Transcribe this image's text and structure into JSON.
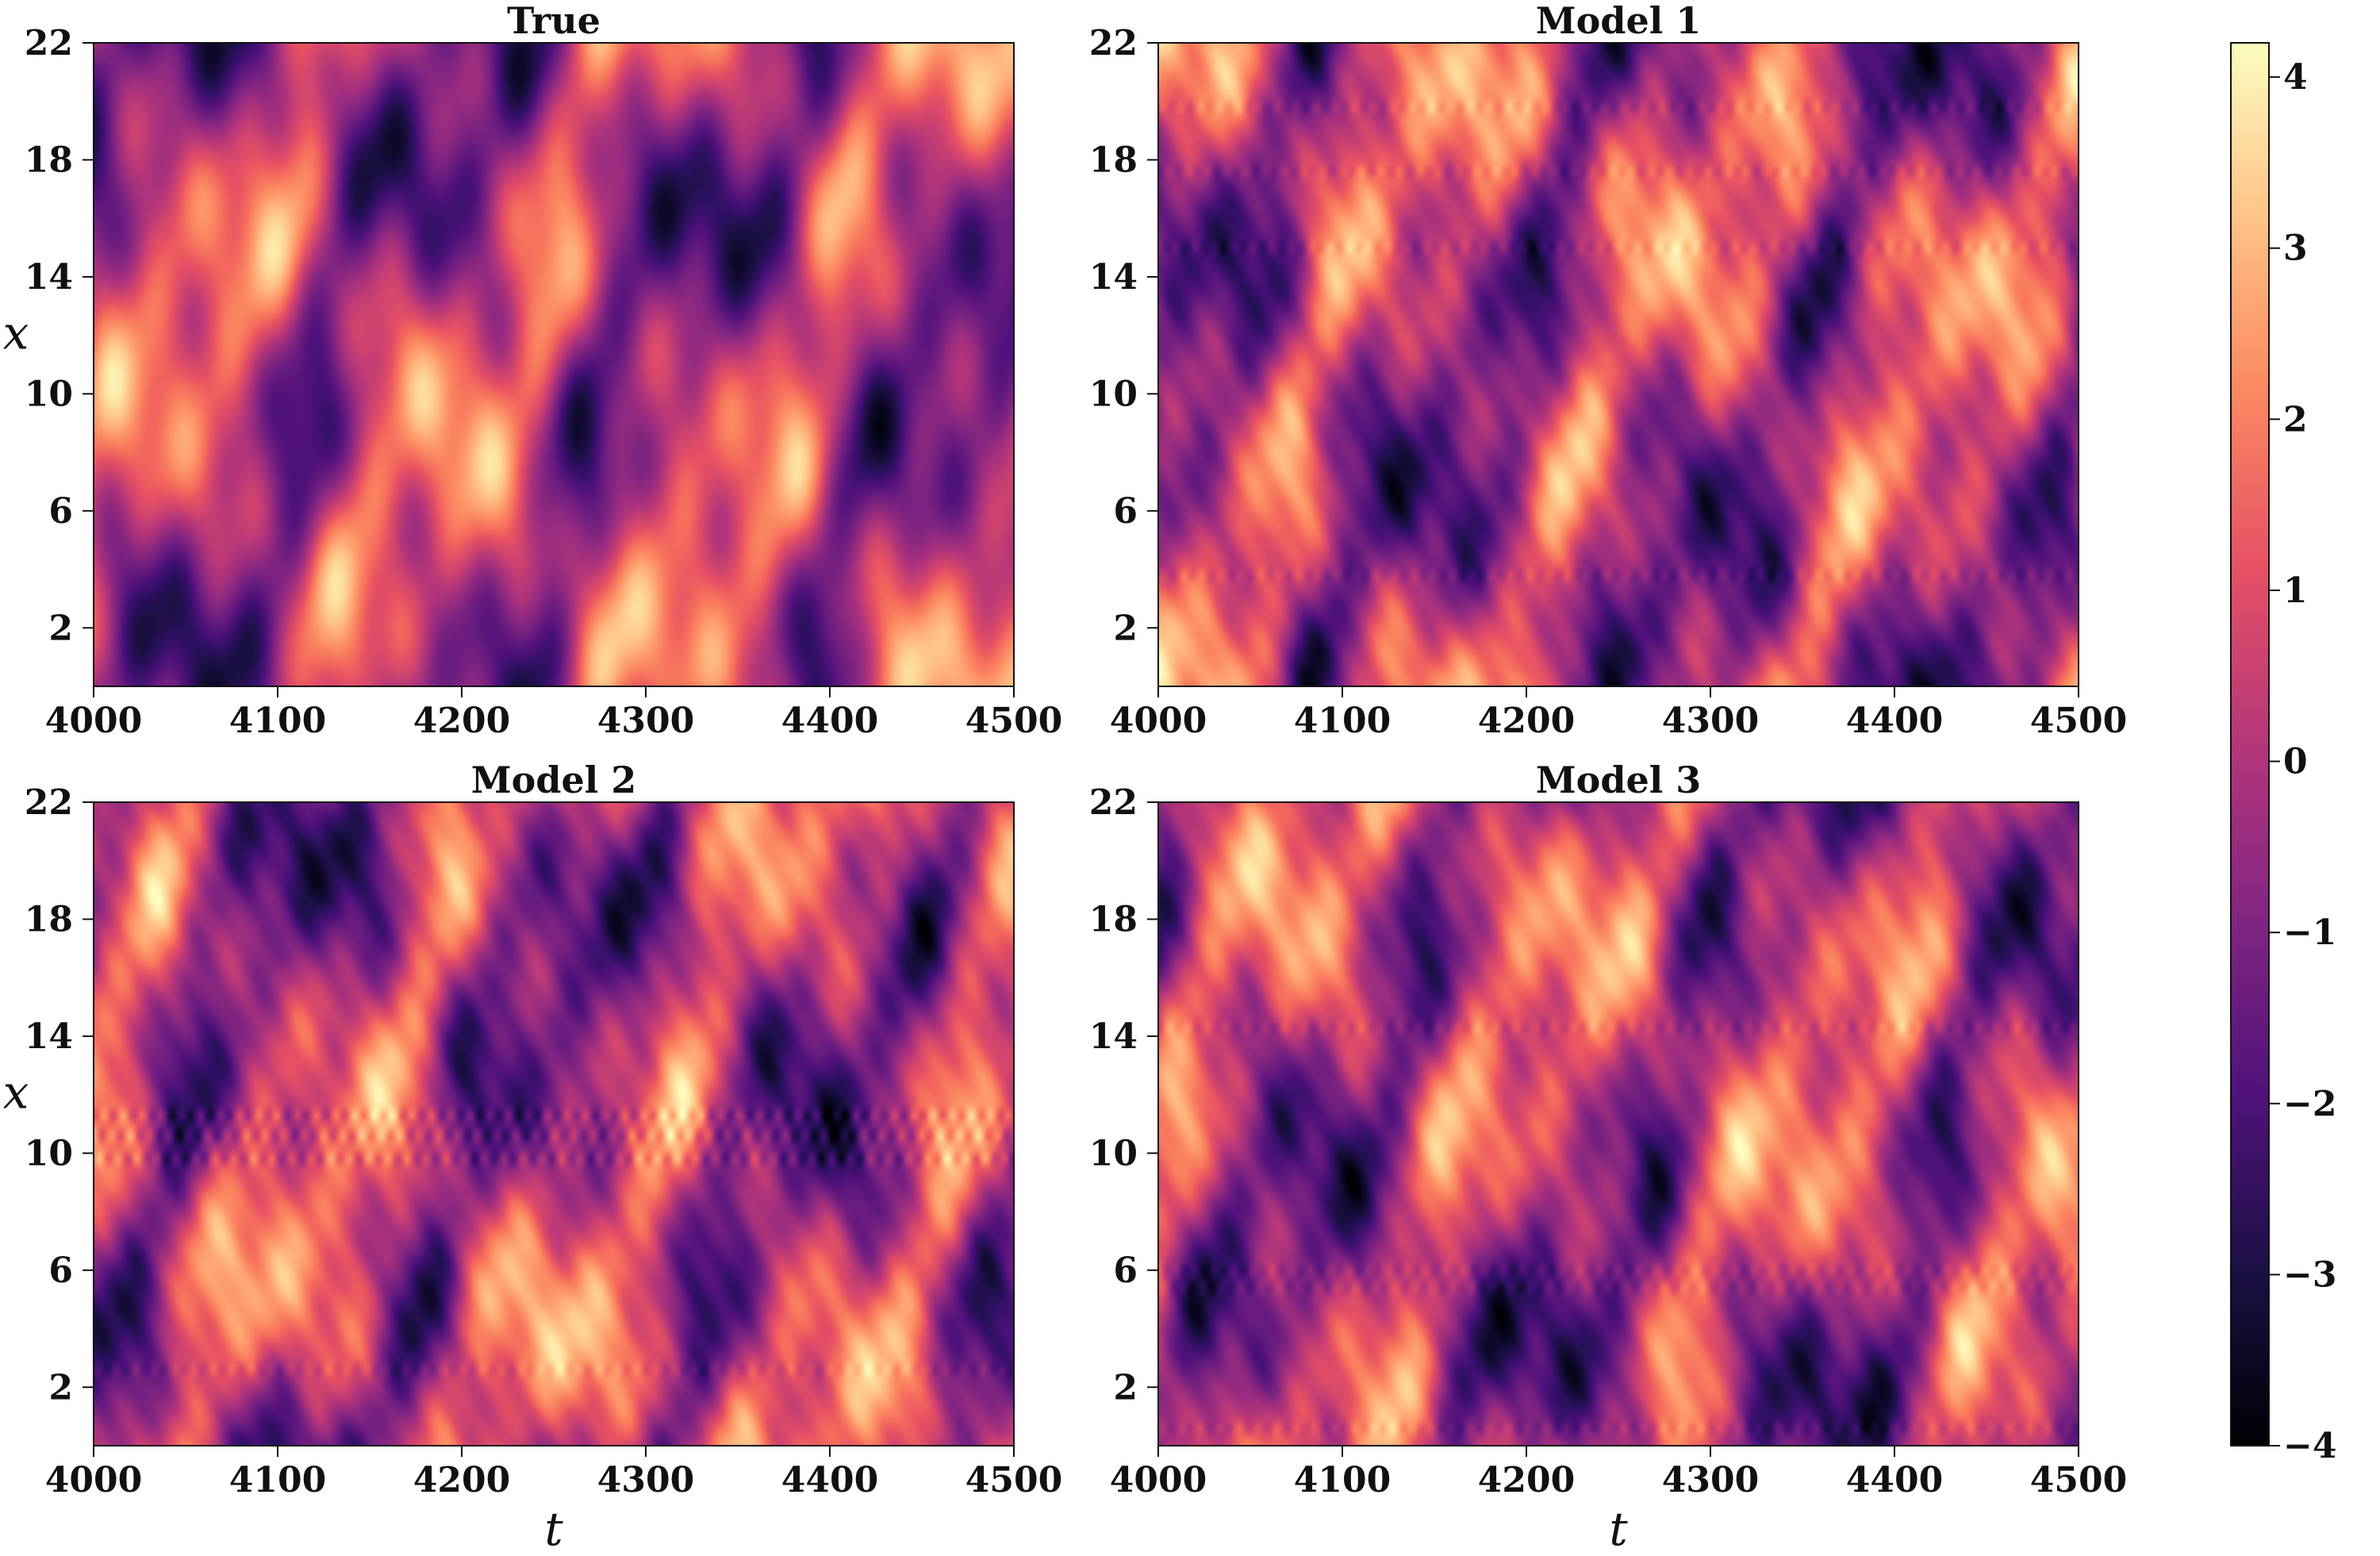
{
  "chart_data": [
    {
      "type": "heatmap",
      "title": "True",
      "xlabel": "",
      "ylabel": "x",
      "xlim": [
        4000,
        4500
      ],
      "ylim": [
        0,
        22
      ],
      "xticks": [
        4000,
        4100,
        4200,
        4300,
        4400,
        4500
      ],
      "yticks": [
        2,
        6,
        10,
        14,
        18,
        22
      ],
      "x_tick_labels": [
        "4000",
        "4100",
        "4200",
        "4300",
        "4400",
        "4500"
      ],
      "y_tick_labels": [
        "2",
        "6",
        "10",
        "14",
        "18",
        "22"
      ],
      "value_range": [
        -4,
        4
      ],
      "pattern": "diagonal stripes drifting up-right, periodic in x"
    },
    {
      "type": "heatmap",
      "title": "Model 1",
      "xlabel": "",
      "ylabel": "",
      "xlim": [
        4000,
        4500
      ],
      "ylim": [
        0,
        22
      ],
      "xticks": [
        4000,
        4100,
        4200,
        4300,
        4400,
        4500
      ],
      "yticks": [
        2,
        6,
        10,
        14,
        18,
        22
      ],
      "x_tick_labels": [
        "4000",
        "4100",
        "4200",
        "4300",
        "4400",
        "4500"
      ],
      "y_tick_labels": [
        "2",
        "6",
        "10",
        "14",
        "18",
        "22"
      ],
      "value_range": [
        -4,
        4
      ],
      "pattern": "diagonal stripes with faint horizontal artifacts"
    },
    {
      "type": "heatmap",
      "title": "Model 2",
      "xlabel": "t",
      "ylabel": "x",
      "xlim": [
        4000,
        4500
      ],
      "ylim": [
        0,
        22
      ],
      "xticks": [
        4000,
        4100,
        4200,
        4300,
        4400,
        4500
      ],
      "yticks": [
        2,
        6,
        10,
        14,
        18,
        22
      ],
      "x_tick_labels": [
        "4000",
        "4100",
        "4200",
        "4300",
        "4400",
        "4500"
      ],
      "y_tick_labels": [
        "2",
        "6",
        "10",
        "14",
        "18",
        "22"
      ],
      "value_range": [
        -4,
        4
      ],
      "pattern": "diagonal stripes with horizontal band artifacts near x=10-12"
    },
    {
      "type": "heatmap",
      "title": "Model 3",
      "xlabel": "t",
      "ylabel": "",
      "xlim": [
        4000,
        4500
      ],
      "ylim": [
        0,
        22
      ],
      "xticks": [
        4000,
        4100,
        4200,
        4300,
        4400,
        4500
      ],
      "yticks": [
        2,
        6,
        10,
        14,
        18,
        22
      ],
      "x_tick_labels": [
        "4000",
        "4100",
        "4200",
        "4300",
        "4400",
        "4500"
      ],
      "y_tick_labels": [
        "2",
        "6",
        "10",
        "14",
        "18",
        "22"
      ],
      "value_range": [
        -4,
        4
      ],
      "pattern": "diagonal stripes with horizontal artifacts near x=6"
    }
  ],
  "colorbar": {
    "colormap": "magma",
    "min": -4,
    "max": 4,
    "tick_values": [
      4,
      3,
      2,
      1,
      0,
      -1,
      -2,
      -3,
      -4
    ],
    "tick_labels": [
      "4",
      "3",
      "2",
      "1",
      "0",
      "−1",
      "−2",
      "−3",
      "−4"
    ]
  }
}
